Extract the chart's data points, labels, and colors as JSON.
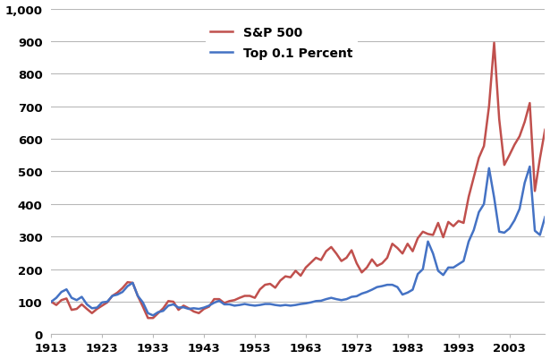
{
  "title": "",
  "xlabel": "",
  "ylabel": "",
  "ylim": [
    0,
    1000
  ],
  "yticks": [
    0,
    100,
    200,
    300,
    400,
    500,
    600,
    700,
    800,
    900,
    1000
  ],
  "ytick_labels": [
    "0",
    "100",
    "200",
    "300",
    "400",
    "500",
    "600",
    "700",
    "800",
    "900",
    "1,000"
  ],
  "xticks": [
    1913,
    1923,
    1933,
    1943,
    1953,
    1963,
    1973,
    1983,
    1993,
    2003
  ],
  "xlim": [
    1913,
    2010
  ],
  "background_color": "#ffffff",
  "grid_color": "#b8b8b8",
  "line_top01_color": "#4472c4",
  "line_sp500_color": "#c0504d",
  "line_width": 1.8,
  "legend_labels": [
    "Top 0.1 Percent",
    "S&P 500"
  ],
  "top01": {
    "years": [
      1913,
      1914,
      1915,
      1916,
      1917,
      1918,
      1919,
      1920,
      1921,
      1922,
      1923,
      1924,
      1925,
      1926,
      1927,
      1928,
      1929,
      1930,
      1931,
      1932,
      1933,
      1934,
      1935,
      1936,
      1937,
      1938,
      1939,
      1940,
      1941,
      1942,
      1943,
      1944,
      1945,
      1946,
      1947,
      1948,
      1949,
      1950,
      1951,
      1952,
      1953,
      1954,
      1955,
      1956,
      1957,
      1958,
      1959,
      1960,
      1961,
      1962,
      1963,
      1964,
      1965,
      1966,
      1967,
      1968,
      1969,
      1970,
      1971,
      1972,
      1973,
      1974,
      1975,
      1976,
      1977,
      1978,
      1979,
      1980,
      1981,
      1982,
      1983,
      1984,
      1985,
      1986,
      1987,
      1988,
      1989,
      1990,
      1991,
      1992,
      1993,
      1994,
      1995,
      1996,
      1997,
      1998,
      1999,
      2000,
      2001,
      2002,
      2003,
      2004,
      2005,
      2006,
      2007,
      2008,
      2009,
      2010
    ],
    "values": [
      100,
      112,
      130,
      138,
      112,
      105,
      115,
      92,
      80,
      82,
      98,
      100,
      118,
      122,
      130,
      148,
      158,
      118,
      98,
      65,
      58,
      68,
      72,
      88,
      92,
      82,
      83,
      78,
      80,
      78,
      82,
      88,
      97,
      103,
      92,
      92,
      88,
      90,
      93,
      90,
      88,
      90,
      93,
      93,
      90,
      88,
      90,
      88,
      90,
      93,
      95,
      98,
      102,
      103,
      108,
      112,
      108,
      105,
      108,
      115,
      117,
      125,
      130,
      137,
      145,
      148,
      152,
      152,
      145,
      122,
      128,
      137,
      185,
      200,
      285,
      248,
      195,
      182,
      205,
      205,
      215,
      225,
      285,
      320,
      375,
      400,
      510,
      420,
      315,
      312,
      325,
      350,
      385,
      465,
      515,
      318,
      305,
      360
    ]
  },
  "sp500": {
    "years": [
      1913,
      1914,
      1915,
      1916,
      1917,
      1918,
      1919,
      1920,
      1921,
      1922,
      1923,
      1924,
      1925,
      1926,
      1927,
      1928,
      1929,
      1930,
      1931,
      1932,
      1933,
      1934,
      1935,
      1936,
      1937,
      1938,
      1939,
      1940,
      1941,
      1942,
      1943,
      1944,
      1945,
      1946,
      1947,
      1948,
      1949,
      1950,
      1951,
      1952,
      1953,
      1954,
      1955,
      1956,
      1957,
      1958,
      1959,
      1960,
      1961,
      1962,
      1963,
      1964,
      1965,
      1966,
      1967,
      1968,
      1969,
      1970,
      1971,
      1972,
      1973,
      1974,
      1975,
      1976,
      1977,
      1978,
      1979,
      1980,
      1981,
      1982,
      1983,
      1984,
      1985,
      1986,
      1987,
      1988,
      1989,
      1990,
      1991,
      1992,
      1993,
      1994,
      1995,
      1996,
      1997,
      1998,
      1999,
      2000,
      2001,
      2002,
      2003,
      2004,
      2005,
      2006,
      2007,
      2008,
      2009,
      2010
    ],
    "values": [
      100,
      90,
      105,
      110,
      75,
      78,
      92,
      78,
      65,
      78,
      88,
      98,
      118,
      128,
      142,
      160,
      158,
      118,
      85,
      50,
      50,
      65,
      80,
      102,
      100,
      75,
      88,
      80,
      70,
      65,
      78,
      85,
      108,
      108,
      96,
      102,
      105,
      112,
      118,
      118,
      112,
      138,
      152,
      155,
      143,
      165,
      178,
      175,
      195,
      180,
      205,
      220,
      235,
      228,
      255,
      268,
      248,
      225,
      235,
      258,
      218,
      190,
      205,
      230,
      210,
      218,
      235,
      278,
      265,
      248,
      278,
      255,
      295,
      315,
      308,
      305,
      342,
      298,
      345,
      332,
      348,
      342,
      422,
      482,
      542,
      578,
      700,
      895,
      660,
      520,
      550,
      582,
      608,
      652,
      710,
      440,
      540,
      628
    ]
  }
}
